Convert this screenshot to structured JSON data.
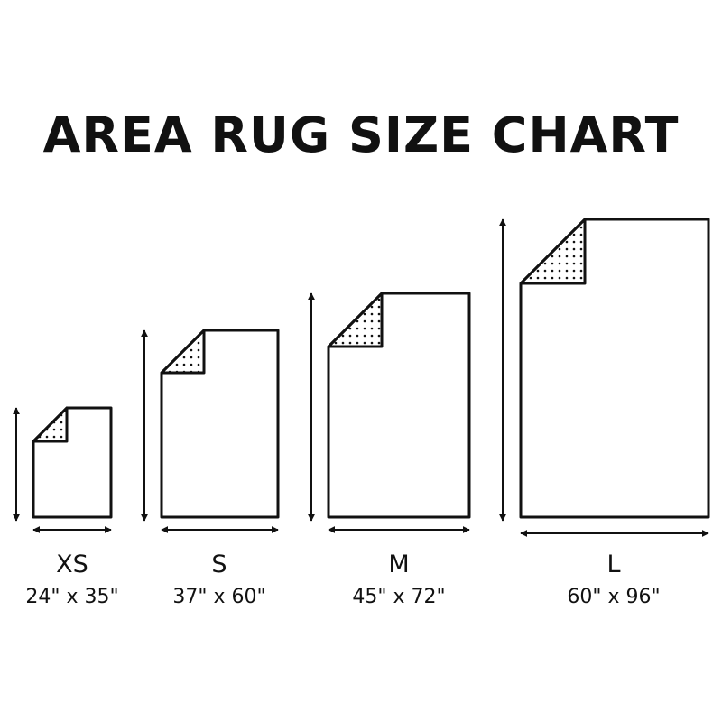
{
  "title": "AREA RUG SIZE CHART",
  "colors": {
    "stroke": "#111111",
    "background": "#ffffff"
  },
  "rugs": [
    {
      "size": "XS",
      "dimensions": "24\" x 35\""
    },
    {
      "size": "S",
      "dimensions": "37\" x 60\""
    },
    {
      "size": "M",
      "dimensions": "45\" x 72\""
    },
    {
      "size": "L",
      "dimensions": "60\" x 96\""
    }
  ]
}
